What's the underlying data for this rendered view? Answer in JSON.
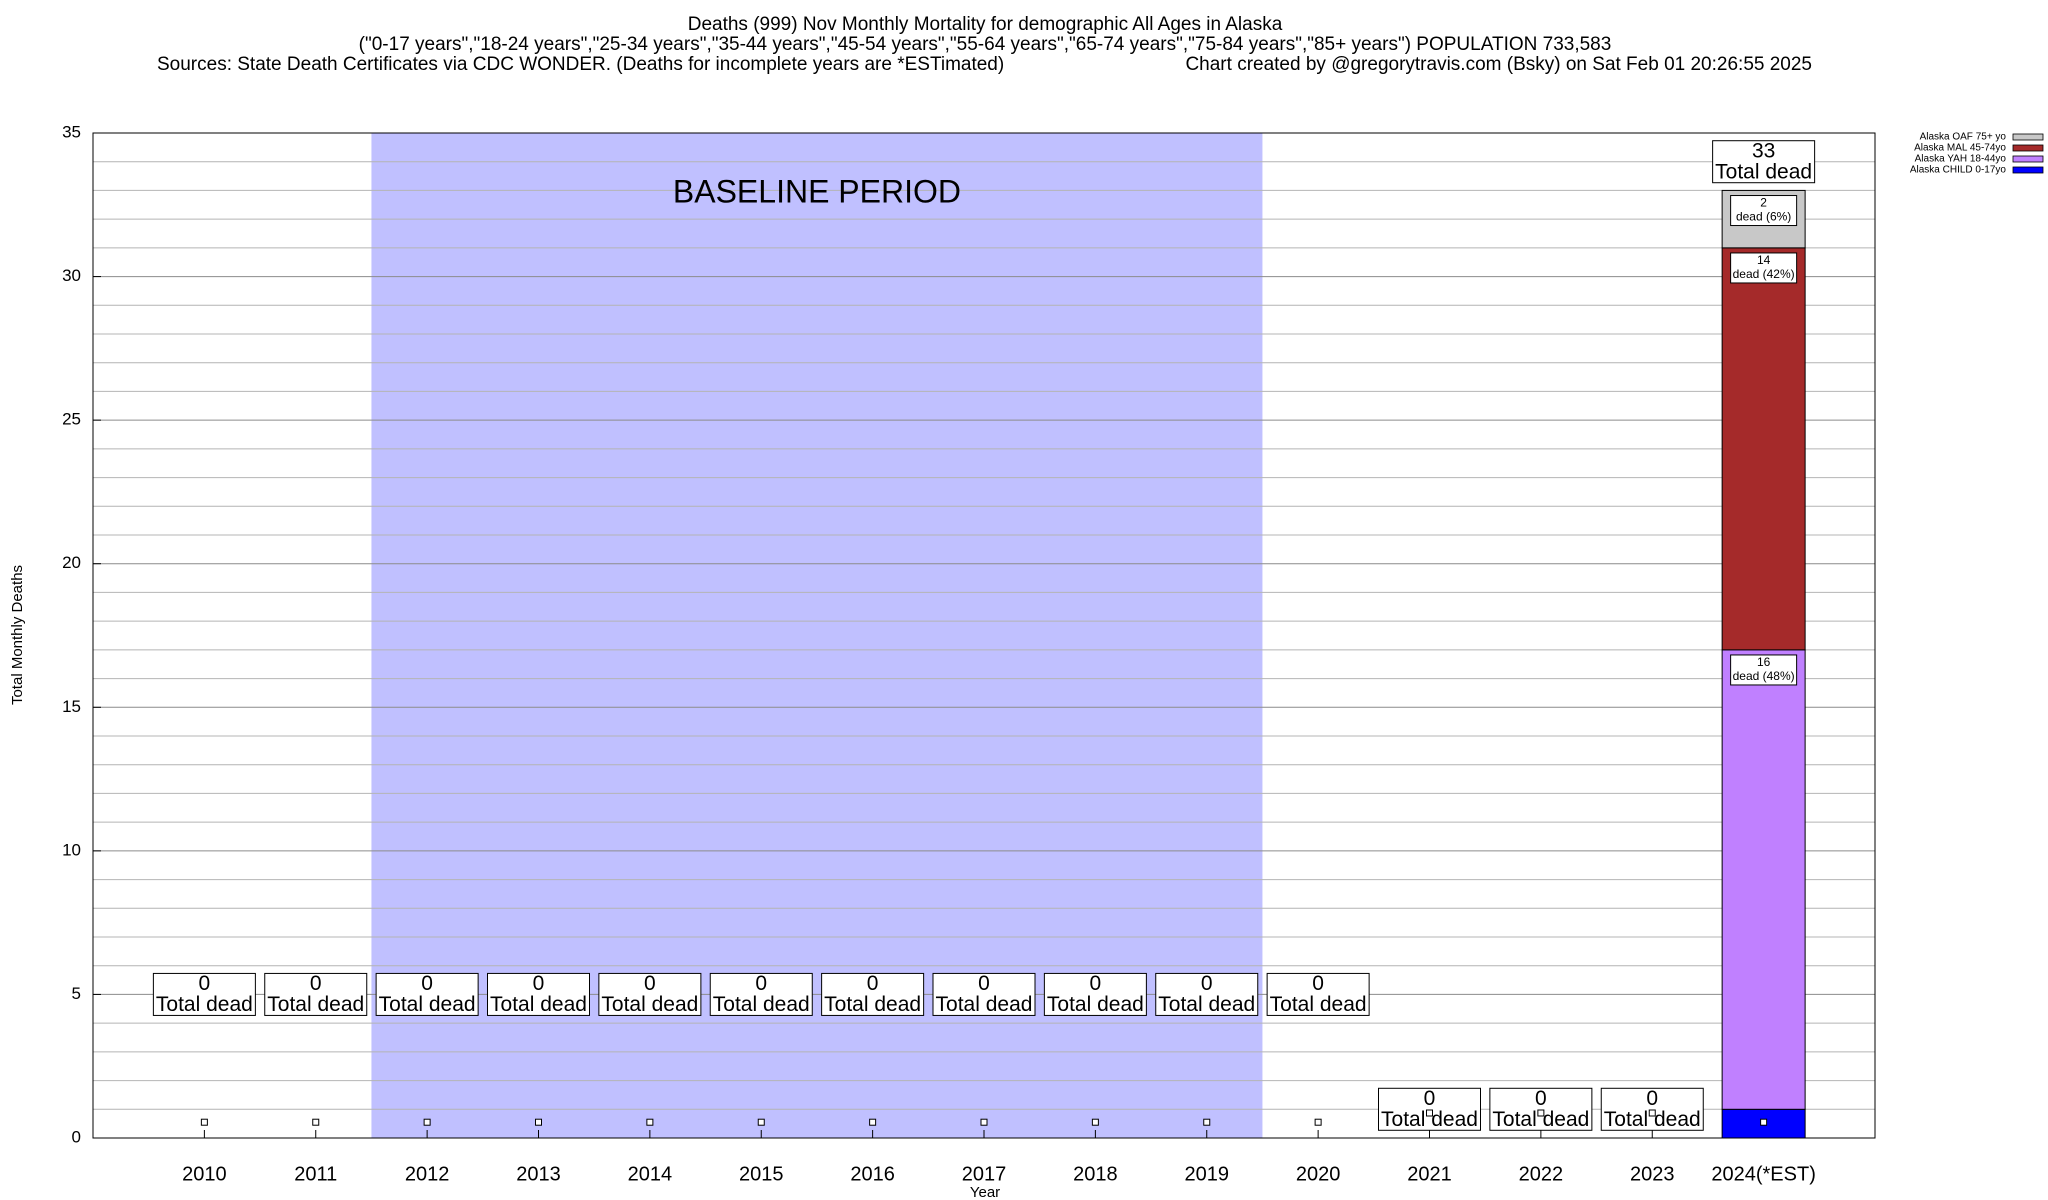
{
  "chart_data": {
    "type": "stacked_bar",
    "title": "Deaths (999) Nov Monthly Mortality for demographic All Ages in Alaska",
    "subtitle": "(\"0-17 years\",\"18-24 years\",\"25-34 years\",\"35-44 years\",\"45-54 years\",\"55-64 years\",\"65-74 years\",\"75-84 years\",\"85+ years\") POPULATION 733,583",
    "source": "Sources: State Death Certificates via CDC WONDER. (Deaths for incomplete years are *ESTimated)",
    "credit": "Chart created by @gregorytravis.com (Bsky) on Sat Feb 01 20:26:55 2025",
    "x_label": "Year",
    "y_label": "Total Monthly Deaths",
    "categories": [
      "2010",
      "2011",
      "2012",
      "2013",
      "2014",
      "2015",
      "2016",
      "2017",
      "2018",
      "2019",
      "2020",
      "2021",
      "2022",
      "2023",
      "2024(*EST)"
    ],
    "series": [
      {
        "name": "Alaska OAF 75+ yo",
        "color": "#c8c8c8",
        "values": [
          0,
          0,
          0,
          0,
          0,
          0,
          0,
          0,
          0,
          0,
          0,
          0,
          0,
          0,
          2
        ],
        "value_labels": [
          null,
          null,
          null,
          null,
          null,
          null,
          null,
          null,
          null,
          null,
          null,
          null,
          null,
          null,
          "dead (6%)"
        ]
      },
      {
        "name": "Alaska MAL 45-74yo",
        "color": "#a52a2a",
        "values": [
          0,
          0,
          0,
          0,
          0,
          0,
          0,
          0,
          0,
          0,
          0,
          0,
          0,
          0,
          14
        ],
        "value_labels": [
          null,
          null,
          null,
          null,
          null,
          null,
          null,
          null,
          null,
          null,
          null,
          null,
          null,
          null,
          "dead (42%)"
        ]
      },
      {
        "name": "Alaska YAH 18-44yo",
        "color": "#c080ff",
        "values": [
          0,
          0,
          0,
          0,
          0,
          0,
          0,
          0,
          0,
          0,
          0,
          0,
          0,
          0,
          16
        ],
        "value_labels": [
          null,
          null,
          null,
          null,
          null,
          null,
          null,
          null,
          null,
          null,
          null,
          null,
          null,
          null,
          "dead (48%)"
        ]
      },
      {
        "name": "Alaska CHILD 0-17yo",
        "color": "#0000ff",
        "values": [
          0,
          0,
          0,
          0,
          0,
          0,
          0,
          0,
          0,
          0,
          0,
          0,
          0,
          0,
          1
        ]
      }
    ],
    "totals": [
      0,
      0,
      0,
      0,
      0,
      0,
      0,
      0,
      0,
      0,
      0,
      0,
      0,
      0,
      33
    ],
    "total_label": "Total dead",
    "baseline": {
      "label": "BASELINE PERIOD",
      "from": "2012",
      "to": "2019",
      "color": "#c0c0ff"
    },
    "ylim": [
      0,
      35
    ],
    "yticks": [
      0,
      5,
      10,
      15,
      20,
      25,
      30,
      35
    ],
    "yminor": [
      1,
      2,
      3,
      4,
      6,
      7,
      8,
      9,
      11,
      12,
      13,
      14,
      16,
      17,
      18,
      19,
      21,
      22,
      23,
      24,
      26,
      27,
      28,
      29,
      31,
      32,
      33,
      34
    ],
    "grid": true,
    "legend": "top-right"
  }
}
